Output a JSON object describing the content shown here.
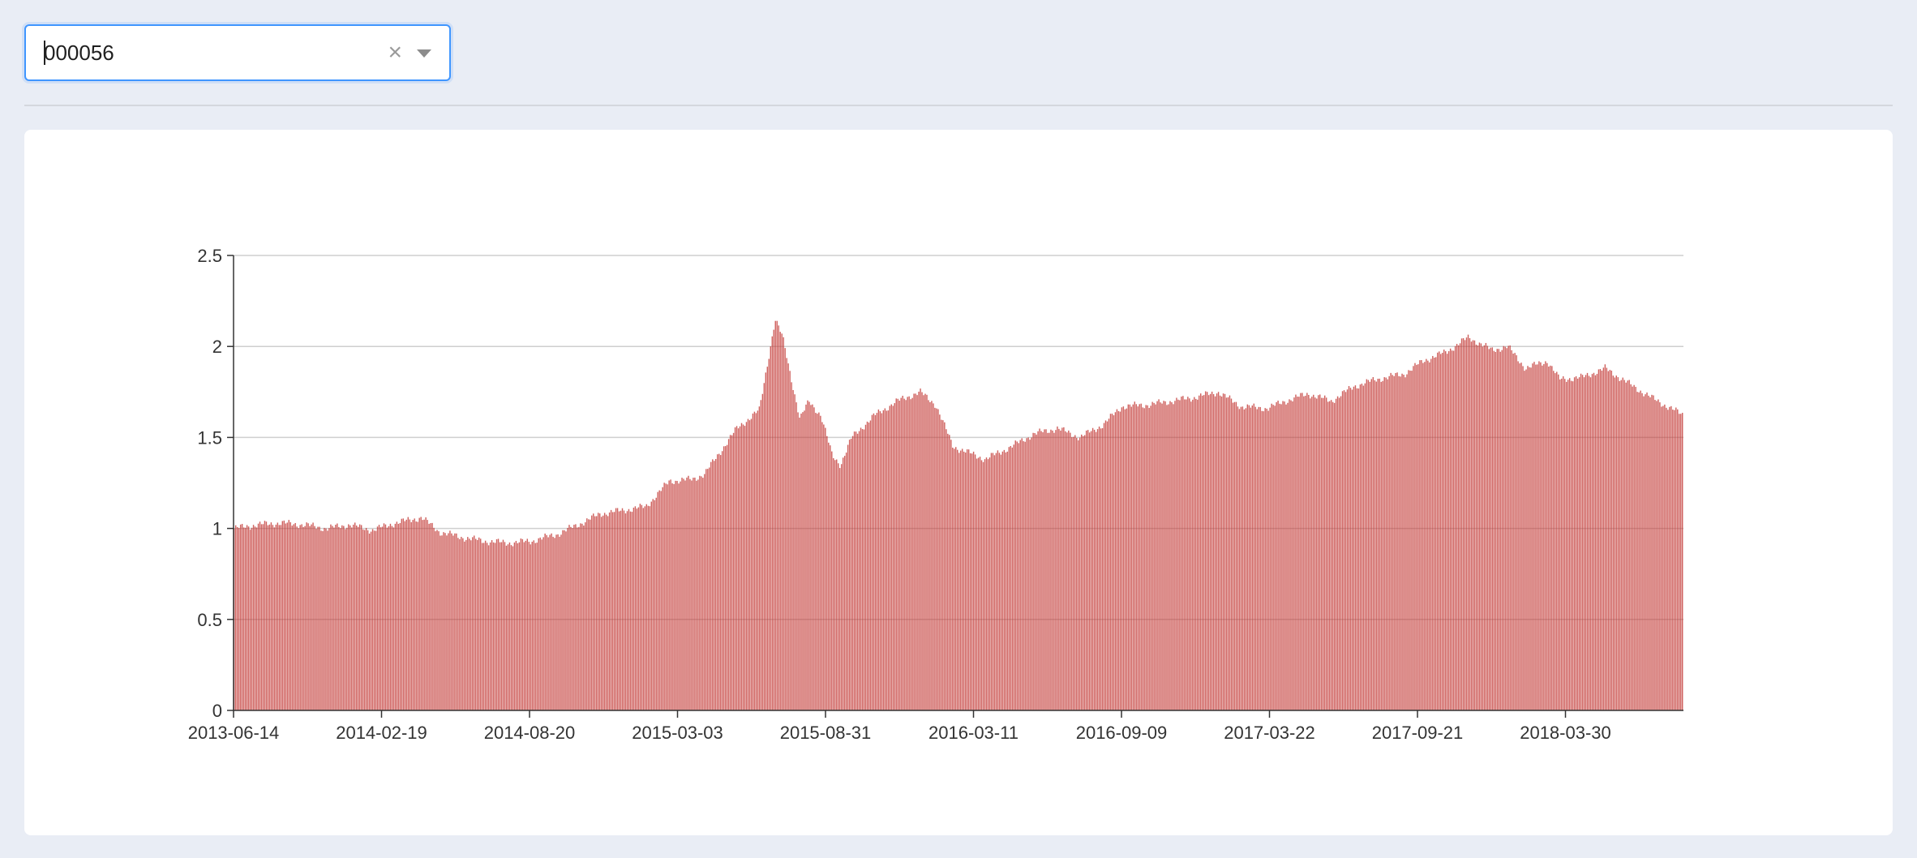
{
  "select": {
    "value": "000056"
  },
  "chart_data": {
    "type": "bar",
    "title": "",
    "xlabel": "",
    "ylabel": "",
    "ylim": [
      0,
      2.5
    ],
    "yticks": [
      "0",
      "0.5",
      "1",
      "1.5",
      "2",
      "2.5"
    ],
    "x_tick_labels": [
      "2013-06-14",
      "2014-02-19",
      "2014-08-20",
      "2015-03-03",
      "2015-08-31",
      "2016-03-11",
      "2016-09-09",
      "2017-03-22",
      "2017-09-21",
      "2018-03-30"
    ],
    "x_range": [
      "2013-06-14",
      "2018-09-28"
    ],
    "grid": true,
    "bar_color": "#c23531",
    "series": [
      {
        "x": [
          "2013-06-14",
          "2013-07-15",
          "2013-08-15",
          "2013-09-15",
          "2013-10-15",
          "2013-11-15",
          "2013-12-15",
          "2014-01-15",
          "2014-02-19",
          "2014-03-15",
          "2014-04-15",
          "2014-05-15",
          "2014-06-15",
          "2014-07-15",
          "2014-08-20",
          "2014-09-15",
          "2014-10-15",
          "2014-11-15",
          "2014-12-15",
          "2015-01-15",
          "2015-02-15",
          "2015-03-03",
          "2015-04-15",
          "2015-05-15",
          "2015-06-05",
          "2015-06-15",
          "2015-07-08",
          "2015-07-20",
          "2015-08-05",
          "2015-08-20",
          "2015-08-31",
          "2015-09-15",
          "2015-10-15",
          "2015-11-15",
          "2015-12-15",
          "2016-01-05",
          "2016-01-28",
          "2016-03-11",
          "2016-04-15",
          "2016-05-15",
          "2016-06-15",
          "2016-07-15",
          "2016-08-15",
          "2016-09-09",
          "2016-10-15",
          "2016-11-15",
          "2016-12-15",
          "2017-01-15",
          "2017-02-15",
          "2017-03-22",
          "2017-04-15",
          "2017-05-15",
          "2017-06-15",
          "2017-07-15",
          "2017-08-15",
          "2017-09-21",
          "2017-10-15",
          "2017-11-15",
          "2017-12-15",
          "2018-01-15",
          "2018-02-05",
          "2018-03-01",
          "2018-03-30",
          "2018-04-15",
          "2018-05-15",
          "2018-06-15",
          "2018-07-15",
          "2018-08-15",
          "2018-09-28"
        ],
        "y": [
          1.0,
          1.02,
          1.03,
          1.02,
          1.0,
          1.02,
          0.99,
          1.03,
          1.06,
          0.98,
          0.95,
          0.93,
          0.92,
          0.93,
          0.97,
          1.02,
          1.08,
          1.1,
          1.12,
          1.26,
          1.27,
          1.3,
          1.55,
          1.65,
          2.15,
          2.05,
          1.6,
          1.7,
          1.62,
          1.4,
          1.35,
          1.5,
          1.62,
          1.7,
          1.75,
          1.68,
          1.45,
          1.38,
          1.45,
          1.52,
          1.55,
          1.5,
          1.57,
          1.67,
          1.68,
          1.7,
          1.72,
          1.75,
          1.67,
          1.66,
          1.7,
          1.74,
          1.7,
          1.78,
          1.82,
          1.85,
          1.92,
          1.97,
          2.05,
          1.98,
          2.0,
          1.88,
          1.92,
          1.82,
          1.83,
          1.88,
          1.8,
          1.72,
          1.62
        ]
      }
    ]
  }
}
